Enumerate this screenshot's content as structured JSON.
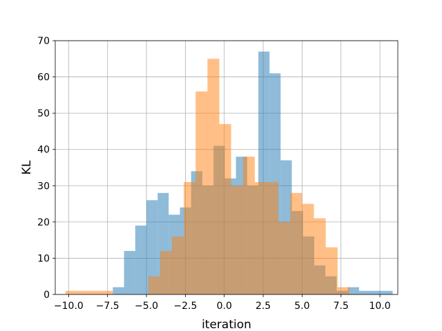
{
  "chart_data": {
    "type": "bar",
    "title": "",
    "xlabel": "iteration",
    "ylabel": "KL",
    "xlim": [
      -10.86,
      11.15
    ],
    "ylim": [
      0,
      70
    ],
    "xticks": [
      -10.0,
      -7.5,
      -5.0,
      -2.5,
      0.0,
      2.5,
      5.0,
      7.5,
      10.0
    ],
    "xtick_labels": [
      "−10.0",
      "−7.5",
      "−5.0",
      "−2.5",
      "0.0",
      "2.5",
      "5.0",
      "7.5",
      "10.0"
    ],
    "yticks": [
      0,
      10,
      20,
      30,
      40,
      50,
      60,
      70
    ],
    "ytick_labels": [
      "0",
      "10",
      "20",
      "30",
      "40",
      "50",
      "60",
      "70"
    ],
    "grid": true,
    "series": [
      {
        "color": "#1f77b4",
        "alpha": 0.5,
        "bins": [
          [
            -7.16,
            -6.44,
            2
          ],
          [
            -6.44,
            -5.72,
            12
          ],
          [
            -5.72,
            -5.0,
            19
          ],
          [
            -5.0,
            -4.28,
            26
          ],
          [
            -4.28,
            -3.57,
            28
          ],
          [
            -3.57,
            -2.85,
            22
          ],
          [
            -2.85,
            -2.13,
            24
          ],
          [
            -2.13,
            -1.41,
            34
          ],
          [
            -1.41,
            -0.69,
            30
          ],
          [
            -0.69,
            0.03,
            41
          ],
          [
            0.03,
            0.75,
            32
          ],
          [
            0.75,
            1.47,
            38
          ],
          [
            1.47,
            2.19,
            30
          ],
          [
            2.19,
            2.91,
            67
          ],
          [
            2.91,
            3.62,
            61
          ],
          [
            3.62,
            4.34,
            37
          ],
          [
            4.34,
            5.06,
            23
          ],
          [
            5.06,
            5.78,
            16
          ],
          [
            5.78,
            6.5,
            8
          ],
          [
            6.5,
            7.22,
            5
          ],
          [
            7.22,
            7.94,
            1
          ],
          [
            7.94,
            8.66,
            2
          ],
          [
            8.66,
            9.38,
            1
          ],
          [
            9.38,
            10.1,
            1
          ],
          [
            10.1,
            10.82,
            1
          ]
        ]
      },
      {
        "color": "#ff7f0e",
        "alpha": 0.5,
        "bins": [
          [
            -10.2,
            -9.44,
            1
          ],
          [
            -9.44,
            -8.68,
            1
          ],
          [
            -8.68,
            -7.92,
            1
          ],
          [
            -7.92,
            -7.16,
            1
          ],
          [
            -7.16,
            -6.4,
            0
          ],
          [
            -6.4,
            -5.64,
            0
          ],
          [
            -5.64,
            -4.88,
            0
          ],
          [
            -4.88,
            -4.12,
            5
          ],
          [
            -4.12,
            -3.36,
            12
          ],
          [
            -3.36,
            -2.6,
            16
          ],
          [
            -2.6,
            -1.84,
            31
          ],
          [
            -1.84,
            -1.08,
            56
          ],
          [
            -1.08,
            -0.32,
            65
          ],
          [
            -0.32,
            0.44,
            47
          ],
          [
            0.44,
            1.2,
            30
          ],
          [
            1.2,
            1.96,
            38
          ],
          [
            1.96,
            2.72,
            31
          ],
          [
            2.72,
            3.48,
            31
          ],
          [
            3.48,
            4.24,
            20
          ],
          [
            4.24,
            5.0,
            28
          ],
          [
            5.0,
            5.76,
            25
          ],
          [
            5.76,
            6.52,
            21
          ],
          [
            6.52,
            7.28,
            13
          ],
          [
            7.28,
            8.04,
            2
          ]
        ]
      }
    ]
  }
}
